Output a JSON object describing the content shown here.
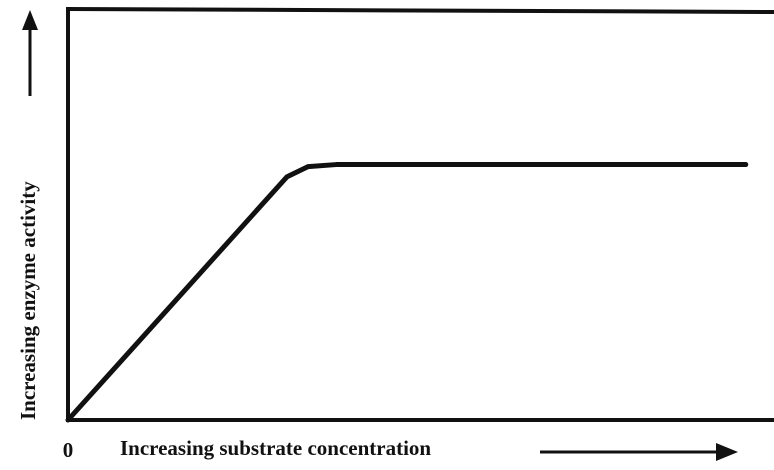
{
  "chart_data": {
    "type": "line",
    "x_label": "Increasing substrate concentration",
    "y_label": "Increasing enzyme activity",
    "x": [
      0,
      31,
      34,
      38,
      96
    ],
    "values": [
      0,
      59,
      61.5,
      62,
      62
    ],
    "color": "#111111",
    "xlim": [
      0,
      100
    ],
    "ylim": [
      0,
      100
    ],
    "xticks": [
      0
    ]
  }
}
